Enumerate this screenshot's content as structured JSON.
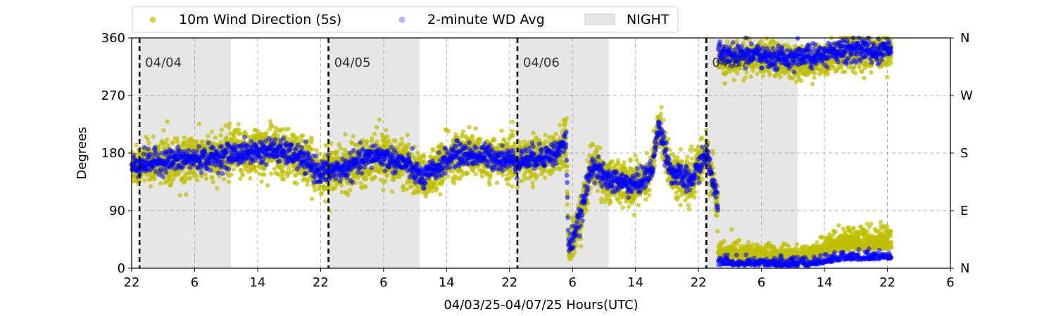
{
  "chart_data": {
    "type": "scatter",
    "xlabel": "04/03/25-04/07/25  Hours(UTC)",
    "ylabel": "Degrees",
    "xlim": [
      0,
      104
    ],
    "ylim": [
      0,
      360
    ],
    "x_axis_hours_start_at": "22",
    "x_ticks": [
      {
        "x": 0,
        "label": "22"
      },
      {
        "x": 8,
        "label": "6"
      },
      {
        "x": 16,
        "label": "14"
      },
      {
        "x": 24,
        "label": "22"
      },
      {
        "x": 32,
        "label": "6"
      },
      {
        "x": 40,
        "label": "14"
      },
      {
        "x": 48,
        "label": "22"
      },
      {
        "x": 56,
        "label": "6"
      },
      {
        "x": 64,
        "label": "14"
      },
      {
        "x": 72,
        "label": "22"
      },
      {
        "x": 80,
        "label": "6"
      },
      {
        "x": 88,
        "label": "14"
      },
      {
        "x": 96,
        "label": "22"
      },
      {
        "x": 104,
        "label": "6"
      }
    ],
    "y_ticks": [
      0,
      90,
      180,
      270,
      360
    ],
    "right_axis_ticks": [
      {
        "value": 0,
        "label": "N"
      },
      {
        "value": 90,
        "label": "E"
      },
      {
        "value": 180,
        "label": "S"
      },
      {
        "value": 270,
        "label": "W"
      },
      {
        "value": 360,
        "label": "N"
      }
    ],
    "grid": true,
    "legend_position": "top-left, above plot",
    "night_bands": [
      {
        "start": 1,
        "end": 12.6
      },
      {
        "start": 25,
        "end": 36.6
      },
      {
        "start": 49,
        "end": 60.6
      },
      {
        "start": 73,
        "end": 84.6
      }
    ],
    "day_boundaries": [
      {
        "x": 1,
        "label": "04/04"
      },
      {
        "x": 25,
        "label": "04/05"
      },
      {
        "x": 49,
        "label": "04/06"
      },
      {
        "x": 73,
        "label": "04/07"
      }
    ],
    "series": [
      {
        "name": "10m Wind Direction (5s)",
        "color": "#bfbf00",
        "trend": [
          {
            "x": 0,
            "y": 160,
            "spread": 28
          },
          {
            "x": 2,
            "y": 165,
            "spread": 28
          },
          {
            "x": 6,
            "y": 170,
            "spread": 30
          },
          {
            "x": 10,
            "y": 172,
            "spread": 30
          },
          {
            "x": 14,
            "y": 180,
            "spread": 35
          },
          {
            "x": 18,
            "y": 185,
            "spread": 35
          },
          {
            "x": 21,
            "y": 175,
            "spread": 32
          },
          {
            "x": 24,
            "y": 150,
            "spread": 30
          },
          {
            "x": 27,
            "y": 155,
            "spread": 30
          },
          {
            "x": 31,
            "y": 178,
            "spread": 30
          },
          {
            "x": 35,
            "y": 162,
            "spread": 30
          },
          {
            "x": 37,
            "y": 140,
            "spread": 30
          },
          {
            "x": 41,
            "y": 178,
            "spread": 32
          },
          {
            "x": 45,
            "y": 175,
            "spread": 30
          },
          {
            "x": 49,
            "y": 168,
            "spread": 28
          },
          {
            "x": 54,
            "y": 180,
            "spread": 28
          },
          {
            "x": 55.2,
            "y": 200,
            "spread": 28
          },
          {
            "x": 55.5,
            "y": 30,
            "spread": 30
          },
          {
            "x": 57,
            "y": 80,
            "spread": 30
          },
          {
            "x": 58.5,
            "y": 165,
            "spread": 30
          },
          {
            "x": 60,
            "y": 140,
            "spread": 30
          },
          {
            "x": 64,
            "y": 130,
            "spread": 30
          },
          {
            "x": 66,
            "y": 150,
            "spread": 28
          },
          {
            "x": 67,
            "y": 225,
            "spread": 30
          },
          {
            "x": 68.5,
            "y": 150,
            "spread": 28
          },
          {
            "x": 71,
            "y": 135,
            "spread": 30
          },
          {
            "x": 73,
            "y": 180,
            "spread": 30
          },
          {
            "x": 74.5,
            "y": 100,
            "spread": 30
          }
        ],
        "upper_branch": [
          {
            "x": 75,
            "y": 325,
            "spread": 22
          },
          {
            "x": 80,
            "y": 330,
            "spread": 22
          },
          {
            "x": 86,
            "y": 322,
            "spread": 22
          },
          {
            "x": 90,
            "y": 335,
            "spread": 22
          },
          {
            "x": 96.5,
            "y": 340,
            "spread": 22
          }
        ],
        "lower_branch": [
          {
            "x": 75,
            "y": 15,
            "spread": 18
          },
          {
            "x": 80,
            "y": 12,
            "spread": 18
          },
          {
            "x": 86,
            "y": 10,
            "spread": 18
          },
          {
            "x": 90,
            "y": 28,
            "spread": 28
          },
          {
            "x": 96.5,
            "y": 30,
            "spread": 28
          }
        ]
      },
      {
        "name": "2-minute WD Avg",
        "color": "#0000ff",
        "trend": [
          {
            "x": 0,
            "y": 160
          },
          {
            "x": 2,
            "y": 165
          },
          {
            "x": 6,
            "y": 170
          },
          {
            "x": 10,
            "y": 172
          },
          {
            "x": 14,
            "y": 180
          },
          {
            "x": 18,
            "y": 185
          },
          {
            "x": 21,
            "y": 175
          },
          {
            "x": 24,
            "y": 150
          },
          {
            "x": 27,
            "y": 155
          },
          {
            "x": 31,
            "y": 178
          },
          {
            "x": 35,
            "y": 162
          },
          {
            "x": 37,
            "y": 140
          },
          {
            "x": 41,
            "y": 178
          },
          {
            "x": 45,
            "y": 175
          },
          {
            "x": 49,
            "y": 168
          },
          {
            "x": 54,
            "y": 180
          },
          {
            "x": 55.2,
            "y": 200
          },
          {
            "x": 55.5,
            "y": 30
          },
          {
            "x": 57,
            "y": 80
          },
          {
            "x": 58.5,
            "y": 165
          },
          {
            "x": 60,
            "y": 140
          },
          {
            "x": 64,
            "y": 130
          },
          {
            "x": 66,
            "y": 150
          },
          {
            "x": 67,
            "y": 225
          },
          {
            "x": 68.5,
            "y": 150
          },
          {
            "x": 71,
            "y": 135
          },
          {
            "x": 73,
            "y": 180
          },
          {
            "x": 74.5,
            "y": 100
          }
        ],
        "upper_branch": [
          {
            "x": 75,
            "y": 335
          },
          {
            "x": 80,
            "y": 332
          },
          {
            "x": 86,
            "y": 330
          },
          {
            "x": 90,
            "y": 340
          },
          {
            "x": 96.5,
            "y": 342
          }
        ],
        "lower_branch": [
          {
            "x": 75,
            "y": 5
          },
          {
            "x": 80,
            "y": 4
          },
          {
            "x": 86,
            "y": 3
          },
          {
            "x": 90,
            "y": 12
          },
          {
            "x": 96.5,
            "y": 15
          }
        ]
      }
    ]
  },
  "legend": {
    "items": [
      {
        "label": "10m Wind Direction (5s)",
        "color": "#bfbf00",
        "marker": "circle"
      },
      {
        "label": "2-minute WD Avg",
        "color": "#0000ff",
        "marker": "circle"
      },
      {
        "label": "NIGHT",
        "color": "#e6e6e6",
        "marker": "patch"
      }
    ]
  }
}
